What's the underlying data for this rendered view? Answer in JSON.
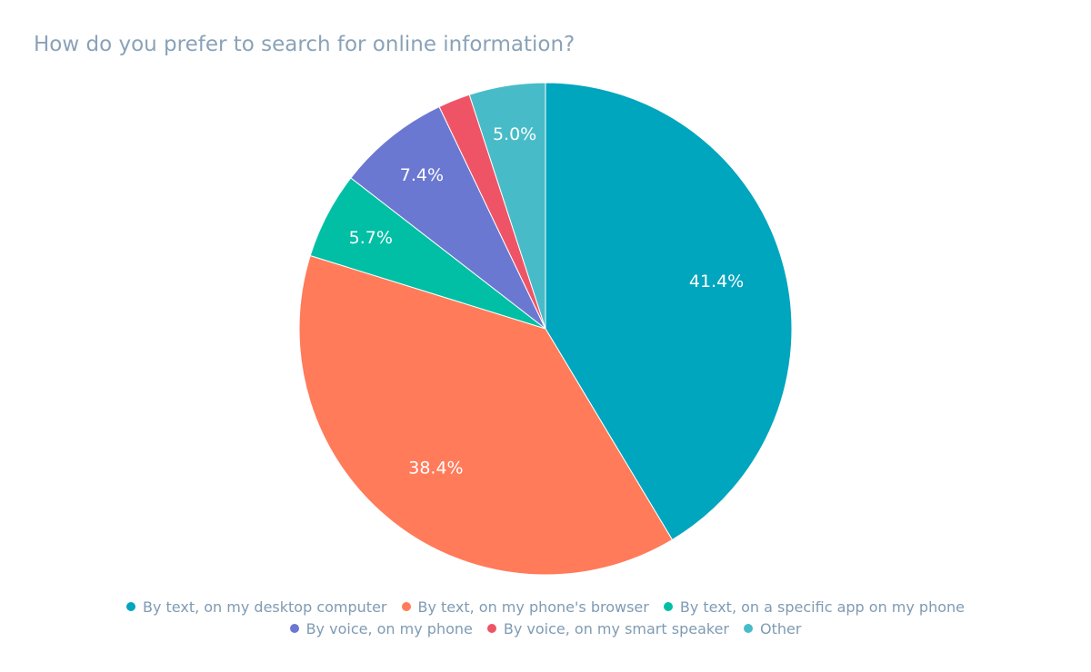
{
  "chart_data": {
    "type": "pie",
    "title": "How do you prefer to search for online information?",
    "categories": [
      "By text, on my desktop computer",
      "By text, on my phone's browser",
      "By text, on a specific app on my phone",
      "By voice, on my phone",
      "By voice, on my smart speaker",
      "Other"
    ],
    "values": [
      41.4,
      38.4,
      5.7,
      7.4,
      2.1,
      5.0
    ],
    "labels": [
      "41.4%",
      "38.4%",
      "5.7%",
      "7.4%",
      "",
      "5.0%"
    ],
    "colors": [
      "#00a5be",
      "#ff7b5a",
      "#00bfa5",
      "#6b78d2",
      "#ef5466",
      "#47bcc8"
    ],
    "legend_position": "bottom",
    "legend_rows": [
      [
        0,
        1,
        2
      ],
      [
        3,
        4,
        5
      ]
    ]
  }
}
